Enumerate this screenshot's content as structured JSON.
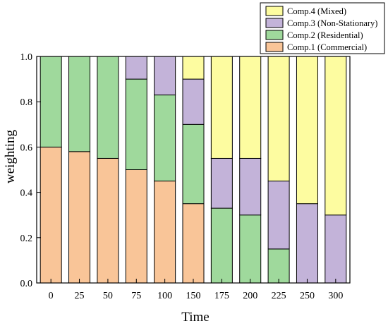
{
  "chart_data": {
    "type": "bar",
    "stacked": true,
    "xlabel": "Time",
    "ylabel": "weighting",
    "ylim": [
      0,
      1.0
    ],
    "yticks": [
      "0.0",
      "0.2",
      "0.4",
      "0.6",
      "0.8",
      "1.0"
    ],
    "categories": [
      "0",
      "25",
      "50",
      "75",
      "100",
      "150",
      "175",
      "200",
      "225",
      "250",
      "300"
    ],
    "legend_position": "top-right",
    "series": [
      {
        "name": "Comp.1 (Commercial)",
        "color": "#f9c598",
        "values": [
          0.6,
          0.58,
          0.55,
          0.5,
          0.45,
          0.35,
          0.0,
          0.0,
          0.0,
          0.0,
          0.0
        ]
      },
      {
        "name": "Comp.2 (Residential)",
        "color": "#9fd99c",
        "values": [
          0.4,
          0.42,
          0.45,
          0.4,
          0.38,
          0.35,
          0.33,
          0.3,
          0.15,
          0.0,
          0.0
        ]
      },
      {
        "name": "Comp.3 (Non-Stationary)",
        "color": "#c3b3d9",
        "values": [
          0.0,
          0.0,
          0.0,
          0.1,
          0.17,
          0.2,
          0.22,
          0.25,
          0.3,
          0.35,
          0.3
        ]
      },
      {
        "name": "Comp.4 (Mixed)",
        "color": "#fdfca0",
        "values": [
          0.0,
          0.0,
          0.0,
          0.0,
          0.0,
          0.1,
          0.45,
          0.45,
          0.55,
          0.65,
          0.7
        ]
      }
    ]
  }
}
